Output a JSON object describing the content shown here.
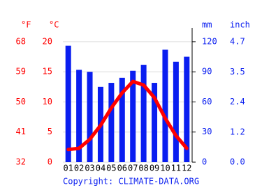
{
  "chart_data": {
    "type": "climate",
    "categories": [
      "01",
      "02",
      "03",
      "04",
      "05",
      "06",
      "07",
      "08",
      "09",
      "10",
      "11",
      "12"
    ],
    "series": [
      {
        "name": "precipitation",
        "type": "bar",
        "axis": "y2",
        "color": "#0a1ef0",
        "values": [
          116,
          92,
          90,
          75,
          79,
          84,
          91,
          97,
          79,
          112,
          100,
          105
        ]
      },
      {
        "name": "temperature",
        "type": "line",
        "axis": "y",
        "color": "#ff0000",
        "values": [
          2.1,
          2.3,
          3.8,
          6.1,
          9.0,
          11.5,
          13.4,
          12.8,
          10.7,
          7.3,
          4.4,
          2.3
        ]
      }
    ],
    "ylim": [
      0,
      22.3
    ],
    "yticks": [
      0,
      5,
      10,
      15,
      20
    ],
    "y2lim": [
      0,
      133.8
    ],
    "y2ticks": [
      0,
      30,
      60,
      90,
      120
    ],
    "axes": [
      {
        "label": "°F",
        "side": "left",
        "color": "#ff0000",
        "lim": [
          32,
          72.14
        ],
        "ticks": [
          32,
          41,
          50,
          59,
          68
        ]
      },
      {
        "label": "°C",
        "side": "left",
        "color": "#ff0000"
      },
      {
        "label": "mm",
        "side": "right",
        "color": "#0a1ef0"
      },
      {
        "label": "inch",
        "side": "right",
        "color": "#0a1ef0",
        "lim": [
          0,
          5.268
        ],
        "ticks": [
          {
            "value": 0,
            "label": "0.0"
          },
          {
            "value": 1.18,
            "label": "1.2"
          },
          {
            "value": 2.36,
            "label": "2.4"
          },
          {
            "value": 3.54,
            "label": "3.5"
          },
          {
            "value": 4.72,
            "label": "4.7"
          }
        ]
      }
    ],
    "grid": true,
    "footer": "Copyright: CLIMATE-DATA.ORG"
  }
}
